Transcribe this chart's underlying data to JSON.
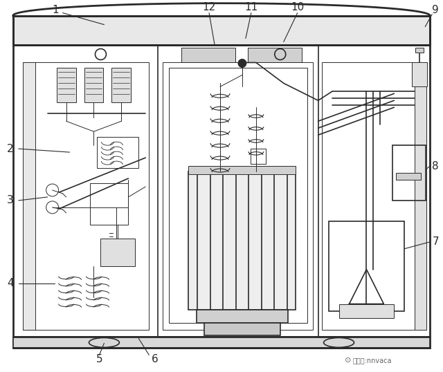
{
  "bg_color": "#ffffff",
  "line_color": "#2a2a2a",
  "fig_width": 6.4,
  "fig_height": 5.38,
  "dpi": 100,
  "watermark": "微信号:nnvaca"
}
